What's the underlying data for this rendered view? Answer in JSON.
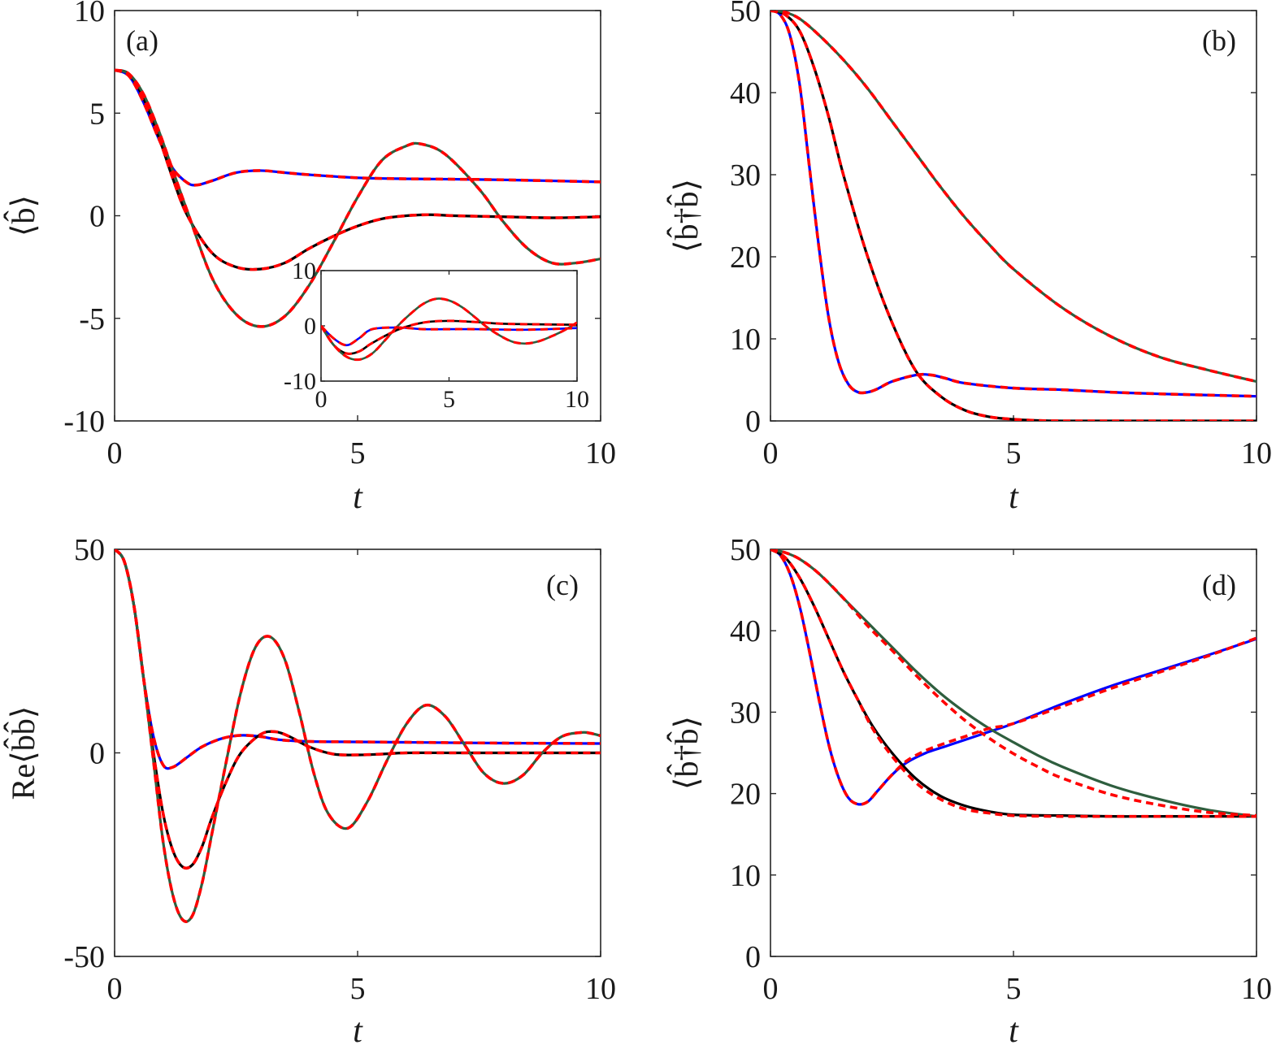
{
  "colors": {
    "blue": "#0000ff",
    "black": "#000000",
    "green": "#2e5e3e",
    "red_dashed": "#ff0000"
  },
  "chart_data": [
    {
      "panel": "(a)",
      "type": "line",
      "xlabel": "t",
      "ylabel": "⟨b̂⟩",
      "xlim": [
        0,
        10
      ],
      "ylim": [
        -10,
        10
      ],
      "xticks": [
        "0",
        "5",
        "10"
      ],
      "yticks": [
        "-10",
        "-5",
        "0",
        "5",
        "10"
      ],
      "grid": false,
      "series": [
        {
          "color": "blue",
          "style": "solid",
          "x": [
            0,
            0.3,
            0.6,
            0.9,
            1.2,
            1.5,
            1.7,
            2,
            2.5,
            3,
            3.5,
            4,
            5,
            6,
            7,
            8,
            10
          ],
          "y": [
            7.1,
            6.8,
            5.5,
            3.8,
            2.3,
            1.6,
            1.5,
            1.7,
            2.1,
            2.2,
            2.1,
            2.0,
            1.85,
            1.8,
            1.78,
            1.75,
            1.65
          ]
        },
        {
          "color": "black",
          "style": "solid",
          "x": [
            0,
            0.3,
            0.6,
            0.9,
            1.2,
            1.5,
            2,
            2.5,
            3,
            3.5,
            4,
            4.5,
            5,
            5.5,
            6,
            6.5,
            7,
            8,
            9,
            10
          ],
          "y": [
            7.1,
            6.9,
            5.7,
            3.9,
            1.8,
            0,
            -1.8,
            -2.5,
            -2.6,
            -2.3,
            -1.6,
            -1.0,
            -0.5,
            -0.15,
            0,
            0.05,
            0,
            -0.05,
            -0.1,
            -0.05
          ]
        },
        {
          "color": "green",
          "style": "solid",
          "x": [
            0,
            0.3,
            0.6,
            0.9,
            1.2,
            1.5,
            2,
            2.5,
            3,
            3.5,
            4,
            4.5,
            5,
            5.5,
            6,
            6.3,
            6.8,
            7.5,
            8,
            8.5,
            9,
            9.5,
            10
          ],
          "y": [
            7.1,
            6.9,
            5.9,
            4.2,
            2.2,
            0.2,
            -3.0,
            -4.8,
            -5.4,
            -4.9,
            -3.4,
            -1.3,
            0.9,
            2.7,
            3.4,
            3.5,
            3.0,
            1.3,
            -0.3,
            -1.6,
            -2.3,
            -2.3,
            -2.1
          ]
        }
      ],
      "fit_overlay": {
        "color": "red_dashed",
        "style": "dashed",
        "note": "overlays each series"
      },
      "inset": {
        "xlim": [
          0,
          10
        ],
        "ylim": [
          -10,
          10
        ],
        "xticks": [
          "0",
          "5",
          "10"
        ],
        "yticks": [
          "-10",
          "0",
          "10"
        ],
        "series": [
          {
            "color": "blue",
            "x": [
              0,
              0.5,
              1,
              1.5,
              2,
              3,
              4,
              5,
              6,
              8,
              10
            ],
            "y": [
              0,
              -2.3,
              -3.5,
              -2.2,
              -0.6,
              -0.3,
              -0.6,
              -0.6,
              -0.6,
              -0.7,
              -0.4
            ]
          },
          {
            "color": "black",
            "x": [
              0,
              0.5,
              1,
              1.5,
              2,
              3,
              4,
              5,
              6,
              7,
              8,
              10
            ],
            "y": [
              0,
              -3.5,
              -5.0,
              -4.6,
              -3.1,
              -0.7,
              0.6,
              0.9,
              0.7,
              0.4,
              0.3,
              0.2
            ]
          },
          {
            "color": "green",
            "x": [
              0,
              0.5,
              1,
              1.5,
              2,
              2.5,
              3,
              3.5,
              4,
              4.5,
              5,
              5.5,
              6,
              6.5,
              7,
              7.5,
              8,
              8.5,
              9,
              9.5,
              10
            ],
            "y": [
              0,
              -3.5,
              -5.6,
              -6.1,
              -5.0,
              -2.6,
              0,
              2.2,
              4.0,
              4.9,
              4.6,
              3.4,
              1.6,
              -0.3,
              -1.8,
              -2.9,
              -3.2,
              -2.8,
              -1.9,
              -0.8,
              0.6
            ]
          }
        ]
      }
    },
    {
      "panel": "(b)",
      "type": "line",
      "xlabel": "t",
      "ylabel": "⟨b̂†b̂⟩",
      "xlim": [
        0,
        10
      ],
      "ylim": [
        0,
        50
      ],
      "xticks": [
        "0",
        "5",
        "10"
      ],
      "yticks": [
        "0",
        "10",
        "20",
        "30",
        "40",
        "50"
      ],
      "grid": false,
      "series": [
        {
          "color": "blue",
          "style": "solid",
          "x": [
            0,
            0.2,
            0.4,
            0.6,
            0.8,
            1.0,
            1.2,
            1.4,
            1.6,
            1.8,
            2.0,
            2.2,
            2.5,
            3.0,
            3.3,
            3.6,
            4.0,
            5.0,
            6.0,
            7.0,
            8.0,
            10.0
          ],
          "y": [
            50,
            49.5,
            47,
            41,
            31,
            21,
            12.5,
            7.2,
            4.5,
            3.5,
            3.5,
            3.9,
            4.8,
            5.6,
            5.6,
            5.2,
            4.6,
            4.0,
            3.8,
            3.5,
            3.3,
            3.0
          ]
        },
        {
          "color": "black",
          "style": "solid",
          "x": [
            0,
            0.3,
            0.6,
            0.9,
            1.2,
            1.5,
            2,
            2.5,
            3,
            3.5,
            4,
            4.5,
            5,
            5.5,
            6,
            7,
            8,
            10
          ],
          "y": [
            50,
            49.5,
            47.5,
            43,
            37,
            30,
            20,
            12,
            6,
            3,
            1.3,
            0.5,
            0.2,
            0.05,
            0,
            0,
            0,
            0
          ]
        },
        {
          "color": "green",
          "style": "solid",
          "x": [
            0,
            0.3,
            0.6,
            1,
            1.5,
            2,
            2.5,
            3,
            3.5,
            4,
            4.5,
            5,
            6,
            7,
            8,
            9,
            10
          ],
          "y": [
            50,
            49.8,
            49,
            47,
            44,
            40.5,
            36.5,
            32.5,
            28.5,
            24.8,
            21.5,
            18.5,
            13.8,
            10.3,
            7.8,
            6.2,
            4.8
          ]
        }
      ],
      "fit_overlay": {
        "color": "red_dashed",
        "style": "dashed",
        "note": "overlays each series"
      }
    },
    {
      "panel": "(c)",
      "type": "line",
      "xlabel": "t",
      "ylabel": "Re⟨b̂b̂⟩",
      "xlim": [
        0,
        10
      ],
      "ylim": [
        -50,
        50
      ],
      "xticks": [
        "0",
        "5",
        "10"
      ],
      "yticks": [
        "-50",
        "0",
        "50"
      ],
      "grid": false,
      "series": [
        {
          "color": "blue",
          "style": "solid",
          "x": [
            0,
            0.2,
            0.4,
            0.6,
            0.8,
            1.0,
            1.2,
            1.5,
            1.8,
            2.2,
            2.6,
            3.0,
            3.4,
            4.0,
            5.0,
            6.0,
            8.0,
            10.0
          ],
          "y": [
            50,
            47,
            36,
            18,
            4,
            -3,
            -3.5,
            -1,
            1.5,
            3.5,
            4.3,
            4,
            3.2,
            2.8,
            2.7,
            2.6,
            2.4,
            2.3
          ]
        },
        {
          "color": "black",
          "style": "solid",
          "x": [
            0,
            0.2,
            0.4,
            0.6,
            0.8,
            1.0,
            1.2,
            1.4,
            1.6,
            1.8,
            2.0,
            2.3,
            2.6,
            3.0,
            3.3,
            3.6,
            4.0,
            4.5,
            5.0,
            5.5,
            6.0,
            7.0,
            8.0,
            10.0
          ],
          "y": [
            50,
            47,
            36,
            18,
            0,
            -15,
            -24,
            -28,
            -27.5,
            -23,
            -16,
            -7,
            0,
            4.5,
            5.2,
            4.0,
            1.5,
            -0.3,
            -0.5,
            -0.3,
            0,
            0,
            0,
            0
          ]
        },
        {
          "color": "green",
          "style": "solid",
          "x": [
            0,
            0.2,
            0.4,
            0.6,
            0.8,
            1.0,
            1.2,
            1.4,
            1.6,
            1.8,
            2.0,
            2.3,
            2.6,
            2.9,
            3.2,
            3.5,
            3.8,
            4.1,
            4.4,
            4.8,
            5.2,
            5.6,
            6.0,
            6.4,
            6.8,
            7.2,
            7.6,
            8.0,
            8.4,
            8.8,
            9.2,
            9.6,
            9.8,
            10.0
          ],
          "y": [
            50,
            47,
            36,
            18,
            -2,
            -22,
            -35,
            -41,
            -40,
            -32,
            -20,
            -2,
            15,
            26,
            28.5,
            23,
            10,
            -5,
            -15,
            -18.5,
            -12,
            -2,
            7,
            11.7,
            9,
            2,
            -5,
            -7.5,
            -5.5,
            0,
            4,
            5,
            4.8,
            4.2
          ]
        }
      ],
      "fit_overlay": {
        "color": "red_dashed",
        "style": "dashed",
        "note": "overlays each series"
      }
    },
    {
      "panel": "(d)",
      "type": "line",
      "xlabel": "t",
      "ylabel": "⟨b̂†b̂⟩",
      "xlim": [
        0,
        10
      ],
      "ylim": [
        0,
        50
      ],
      "xticks": [
        "0",
        "5",
        "10"
      ],
      "yticks": [
        "0",
        "10",
        "20",
        "30",
        "40",
        "50"
      ],
      "grid": false,
      "series": [
        {
          "color": "blue",
          "style": "solid",
          "x": [
            0,
            0.2,
            0.4,
            0.6,
            0.8,
            1.0,
            1.2,
            1.4,
            1.6,
            1.8,
            2.0,
            2.2,
            2.5,
            2.8,
            3.2,
            3.6,
            4.0,
            4.5,
            5.0,
            6.0,
            7.0,
            8.0,
            9.0,
            10.0
          ],
          "y": [
            50,
            49.3,
            47,
            43,
            37.5,
            31.5,
            26,
            22,
            19.5,
            18.7,
            19,
            20.3,
            22.3,
            23.8,
            25,
            25.8,
            26.6,
            27.6,
            28.6,
            31,
            33.2,
            35.1,
            37,
            39
          ]
        },
        {
          "color": "black",
          "style": "solid",
          "x": [
            0,
            0.3,
            0.6,
            0.9,
            1.2,
            1.5,
            1.8,
            2.1,
            2.5,
            3.0,
            3.5,
            4.0,
            4.5,
            5.0,
            6.0,
            7.0,
            8.0,
            10.0
          ],
          "y": [
            50,
            49,
            46.5,
            43,
            39,
            35,
            31.5,
            28.3,
            25,
            21.8,
            19.7,
            18.5,
            17.8,
            17.4,
            17.3,
            17.2,
            17.2,
            17.2
          ]
        },
        {
          "color": "green",
          "style": "solid",
          "x": [
            0,
            0.3,
            0.6,
            1,
            1.5,
            2,
            2.5,
            3,
            3.5,
            4,
            4.5,
            5,
            5.5,
            6,
            7,
            8,
            9,
            10
          ],
          "y": [
            50,
            49.6,
            48.8,
            47,
            44,
            41,
            38,
            35,
            32.3,
            30,
            28,
            26.3,
            24.7,
            23.3,
            21,
            19.3,
            18,
            17.2
          ]
        }
      ],
      "fit_overlay": {
        "color": "red_dashed",
        "style": "dashed",
        "note": "overlays each series"
      },
      "fit_values": [
        {
          "x": [
            0,
            0.2,
            0.4,
            0.6,
            0.8,
            1.0,
            1.2,
            1.4,
            1.6,
            1.8,
            2.0,
            2.2,
            2.5,
            2.8,
            3.2,
            3.6,
            4.0,
            4.5,
            5.0,
            6.0,
            7.0,
            8.0,
            9.0,
            10.0
          ],
          "y": [
            50,
            49.3,
            47,
            43,
            37.5,
            31.5,
            26,
            22,
            19.5,
            18.7,
            19,
            20.3,
            22.3,
            24,
            25.3,
            26.2,
            27,
            28,
            28.6,
            30.7,
            32.9,
            34.9,
            36.9,
            39.1
          ]
        },
        {
          "x": [
            0,
            0.3,
            0.6,
            0.9,
            1.2,
            1.5,
            1.8,
            2.1,
            2.5,
            3.0,
            3.5,
            4.0,
            4.5,
            5.0,
            6.0,
            7.0,
            8.0,
            10.0
          ],
          "y": [
            50,
            49,
            46.5,
            43,
            39,
            35,
            31.5,
            28,
            24.6,
            21.3,
            19.3,
            18.1,
            17.6,
            17.3,
            17.2,
            17.2,
            17.2,
            17.2
          ]
        },
        {
          "x": [
            0,
            0.3,
            0.6,
            1,
            1.5,
            2,
            2.5,
            3,
            3.5,
            4,
            4.5,
            5,
            5.5,
            6,
            7,
            8,
            9,
            10
          ],
          "y": [
            50,
            49.6,
            48.8,
            47,
            44,
            40.6,
            37.6,
            34.5,
            31.6,
            29,
            26.8,
            24.9,
            23.3,
            21.9,
            19.9,
            18.6,
            17.7,
            17.3
          ]
        }
      ]
    }
  ]
}
